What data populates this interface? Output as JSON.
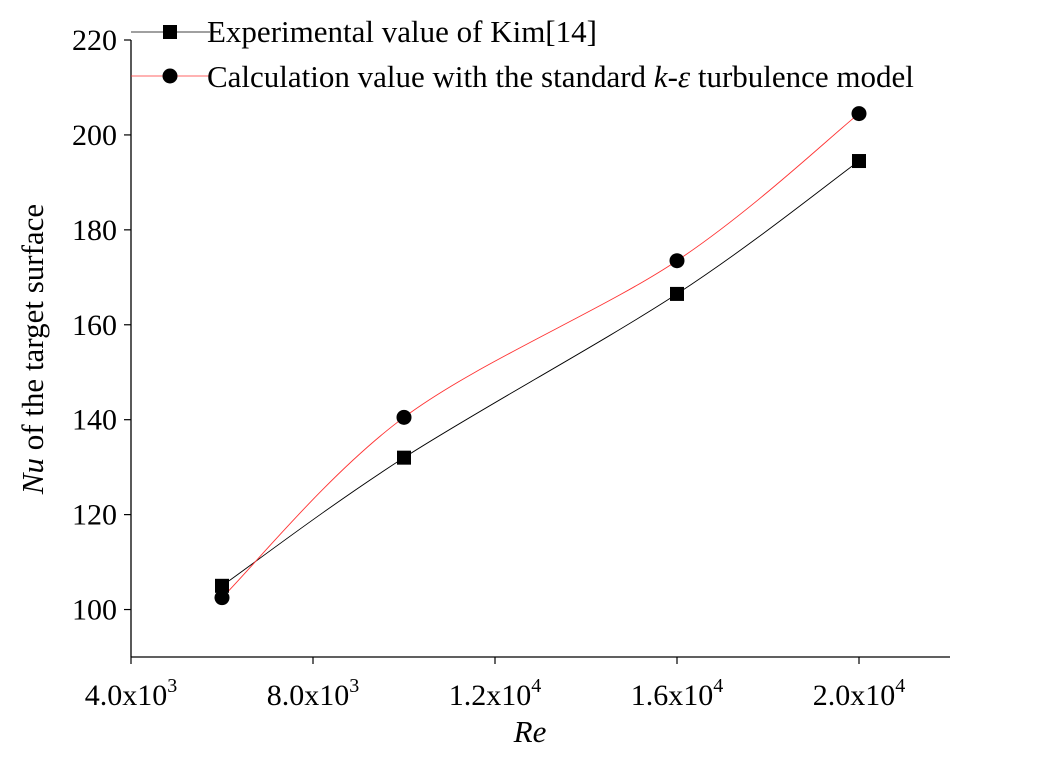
{
  "chart_data": {
    "type": "line",
    "title": "",
    "xlabel": "Re",
    "ylabel": {
      "variable": "Nu",
      "rest": " of the target surface"
    },
    "xlim": [
      4000,
      22000
    ],
    "ylim": [
      90,
      220
    ],
    "x_ticks": [
      4000,
      8000,
      12000,
      16000,
      20000
    ],
    "x_tick_labels": [
      {
        "mantissa": "4.0x10",
        "exp": "3"
      },
      {
        "mantissa": "8.0x10",
        "exp": "3"
      },
      {
        "mantissa": "1.2x10",
        "exp": "4"
      },
      {
        "mantissa": "1.6x10",
        "exp": "4"
      },
      {
        "mantissa": "2.0x10",
        "exp": "4"
      }
    ],
    "y_ticks": [
      100,
      120,
      140,
      160,
      180,
      200,
      220
    ],
    "y_tick_labels": [
      "100",
      "120",
      "140",
      "160",
      "180",
      "200",
      "220"
    ],
    "legend_position": "top",
    "series": [
      {
        "name": "Experimental value of Kim[14]",
        "legend_parts": [
          "Experimental value of Kim[14]"
        ],
        "color": "#000000",
        "marker": "square",
        "x": [
          6000,
          10000,
          16000,
          20000
        ],
        "values": [
          105,
          132,
          166.5,
          194.5
        ]
      },
      {
        "name": "Calculation value with the standard k-ε turbulence model",
        "legend_parts": [
          "Calculation value with the standard ",
          "k",
          "-",
          "ε",
          " turbulence model"
        ],
        "color": "#ff3333",
        "marker": "circle",
        "x": [
          6000,
          10000,
          16000,
          20000
        ],
        "values": [
          102.5,
          140.5,
          173.5,
          204.5
        ]
      }
    ]
  }
}
